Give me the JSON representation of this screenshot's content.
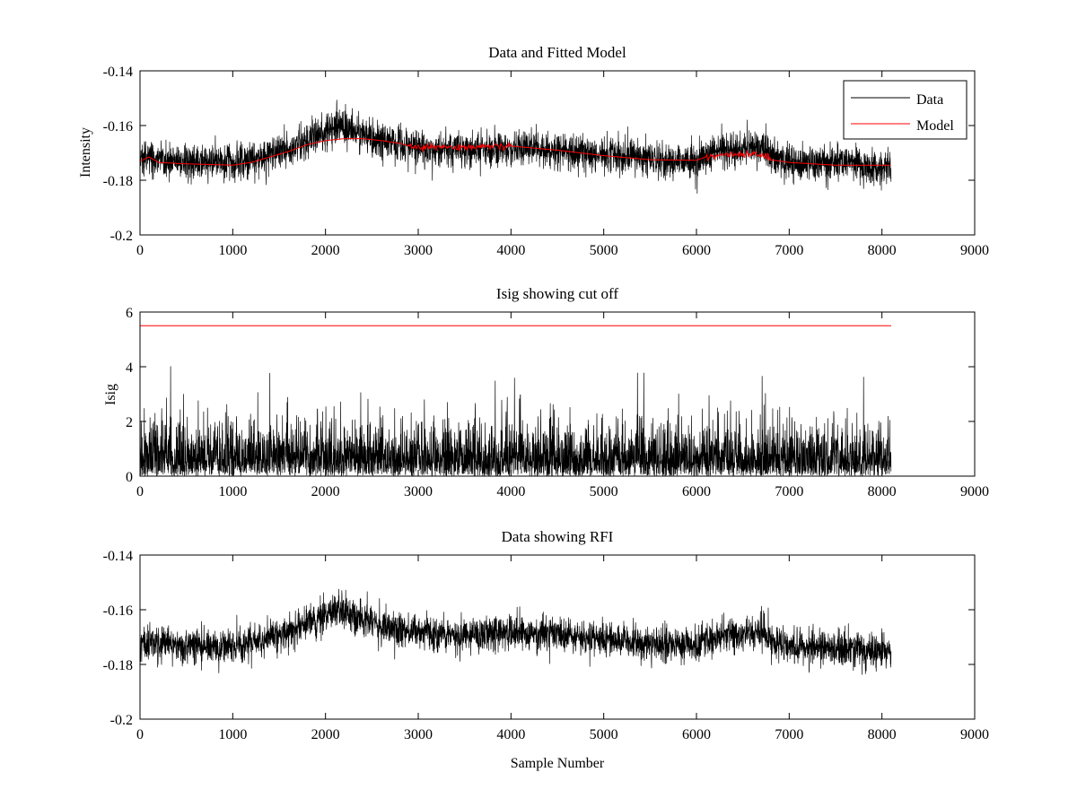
{
  "chart_data": [
    {
      "type": "line",
      "title": "Data and Fitted Model",
      "xlabel": "",
      "ylabel": "Intensity",
      "xlim": [
        0,
        9000
      ],
      "ylim": [
        -0.2,
        -0.14
      ],
      "xticks": [
        0,
        1000,
        2000,
        3000,
        4000,
        5000,
        6000,
        7000,
        8000,
        9000
      ],
      "yticks": [
        -0.2,
        -0.18,
        -0.16,
        -0.14
      ],
      "ytick_labels": [
        "-0.2",
        "-0.18",
        "-0.16",
        "-0.14"
      ],
      "legend": {
        "position": "top-right",
        "entries": [
          "Data",
          "Model"
        ]
      },
      "series": [
        {
          "name": "Data",
          "color": "#000000",
          "kind": "noisy",
          "n_samples": 8100,
          "baseline_x": [
            0,
            100,
            500,
            1000,
            1300,
            1600,
            1900,
            2100,
            2300,
            2500,
            2800,
            3000,
            3500,
            3800,
            4000,
            4500,
            5000,
            5500,
            6000,
            6100,
            6300,
            6500,
            6700,
            6800,
            7000,
            7500,
            8100
          ],
          "baseline_y": [
            -0.173,
            -0.1715,
            -0.1735,
            -0.1735,
            -0.172,
            -0.168,
            -0.1635,
            -0.1605,
            -0.162,
            -0.164,
            -0.167,
            -0.1685,
            -0.169,
            -0.1685,
            -0.1685,
            -0.169,
            -0.1705,
            -0.1725,
            -0.1735,
            -0.1705,
            -0.169,
            -0.169,
            -0.168,
            -0.171,
            -0.173,
            -0.174,
            -0.1755
          ],
          "noise_sd": 0.0032
        },
        {
          "name": "Model",
          "color": "#ff0000",
          "kind": "smooth",
          "x": [
            0,
            100,
            200,
            500,
            1000,
            1200,
            1400,
            1600,
            1800,
            2000,
            2200,
            2400,
            2600,
            2800,
            2900,
            3000,
            3500,
            3800,
            4000,
            4500,
            5000,
            5500,
            6000,
            6100,
            6300,
            6500,
            6700,
            6800,
            7000,
            7500,
            8100
          ],
          "y": [
            -0.173,
            -0.1715,
            -0.1735,
            -0.174,
            -0.1745,
            -0.1735,
            -0.1715,
            -0.1695,
            -0.167,
            -0.1655,
            -0.1648,
            -0.1648,
            -0.1655,
            -0.1665,
            -0.1675,
            -0.168,
            -0.168,
            -0.1675,
            -0.1675,
            -0.169,
            -0.171,
            -0.1725,
            -0.1727,
            -0.1715,
            -0.1705,
            -0.1705,
            -0.1705,
            -0.1725,
            -0.1735,
            -0.1745,
            -0.1745
          ],
          "jitter_ranges": [
            [
              2900,
              4000
            ],
            [
              6100,
              6800
            ]
          ],
          "jitter_sd": 0.0006
        }
      ]
    },
    {
      "type": "line",
      "title": "Isig showing cut off",
      "xlabel": "",
      "ylabel": "Isig",
      "xlim": [
        0,
        9000
      ],
      "ylim": [
        0,
        6
      ],
      "xticks": [
        0,
        1000,
        2000,
        3000,
        4000,
        5000,
        6000,
        7000,
        8000,
        9000
      ],
      "yticks": [
        0,
        2,
        4,
        6
      ],
      "ytick_labels": [
        "0",
        "2",
        "4",
        "6"
      ],
      "series": [
        {
          "name": "Isig",
          "color": "#000000",
          "kind": "abs-noise",
          "n_samples": 8100,
          "mean_abs": 0.75,
          "max_value": 4.1
        },
        {
          "name": "Cut off",
          "color": "#ff0000",
          "kind": "constant",
          "x": [
            0,
            8100
          ],
          "y": [
            5.5,
            5.5
          ]
        }
      ]
    },
    {
      "type": "line",
      "title": "Data showing RFI",
      "xlabel": "Sample Number",
      "ylabel": "",
      "xlim": [
        0,
        9000
      ],
      "ylim": [
        -0.2,
        -0.14
      ],
      "xticks": [
        0,
        1000,
        2000,
        3000,
        4000,
        5000,
        6000,
        7000,
        8000,
        9000
      ],
      "yticks": [
        -0.2,
        -0.18,
        -0.16,
        -0.14
      ],
      "ytick_labels": [
        "-0.2",
        "-0.18",
        "-0.16",
        "-0.14"
      ],
      "series": [
        {
          "name": "Data",
          "color": "#000000",
          "kind": "noisy",
          "n_samples": 8100,
          "baseline_x": [
            0,
            100,
            500,
            1000,
            1300,
            1600,
            1900,
            2100,
            2300,
            2500,
            2800,
            3000,
            3500,
            3800,
            4000,
            4500,
            5000,
            5500,
            6000,
            6100,
            6300,
            6500,
            6700,
            6800,
            7000,
            7500,
            8100
          ],
          "baseline_y": [
            -0.173,
            -0.1715,
            -0.1735,
            -0.1735,
            -0.172,
            -0.168,
            -0.1635,
            -0.1605,
            -0.162,
            -0.164,
            -0.167,
            -0.1685,
            -0.169,
            -0.1685,
            -0.1685,
            -0.169,
            -0.1705,
            -0.1725,
            -0.1735,
            -0.1705,
            -0.169,
            -0.169,
            -0.168,
            -0.171,
            -0.173,
            -0.174,
            -0.1755
          ],
          "noise_sd": 0.0032
        }
      ]
    }
  ]
}
